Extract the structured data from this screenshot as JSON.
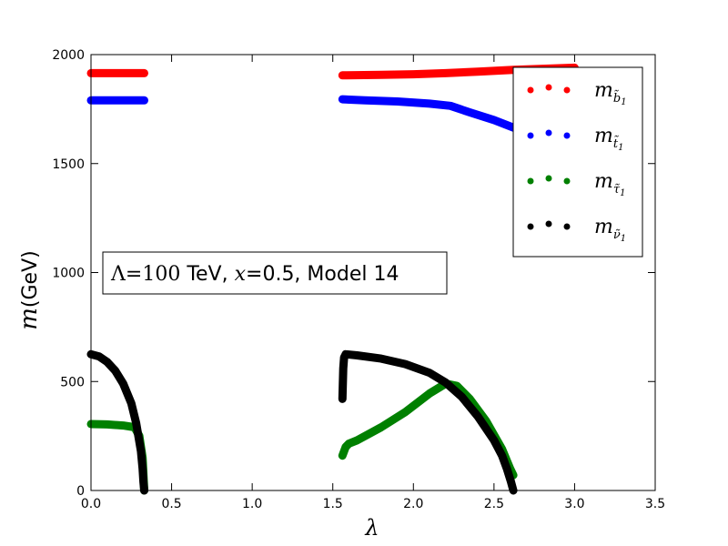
{
  "chart_data": {
    "type": "scatter",
    "xlabel": "λ",
    "ylabel_math": "m",
    "ylabel_unit": "(GeV)",
    "xlim": [
      0.0,
      3.5
    ],
    "ylim": [
      0,
      2000
    ],
    "x_ticks": [
      "0.0",
      "0.5",
      "1.0",
      "1.5",
      "2.0",
      "2.5",
      "3.0",
      "3.5"
    ],
    "y_ticks": [
      "0",
      "500",
      "1000",
      "1500",
      "2000"
    ],
    "grid": false,
    "legend_position": "top-right",
    "annotation": {
      "lambda_sym": "Λ",
      "eq1": "=",
      "lambda_val": "100",
      "rest1": " TeV, ",
      "x_sym": "x",
      "rest2": "=0.5, Model 14"
    },
    "series": [
      {
        "legend_main": "m",
        "legend_sub": "b̃",
        "legend_sub_index": "1",
        "color": "#ff0000",
        "segments": [
          {
            "x": [
              0.0,
              0.1,
              0.2,
              0.33
            ],
            "y": [
              1915,
              1915,
              1915,
              1915
            ]
          },
          {
            "x": [
              1.56,
              1.8,
              2.0,
              2.2,
              2.4,
              2.62,
              2.8,
              3.0
            ],
            "y": [
              1905,
              1907,
              1910,
              1915,
              1922,
              1930,
              1935,
              1940
            ]
          }
        ]
      },
      {
        "legend_main": "m",
        "legend_sub": "t̃",
        "legend_sub_index": "1",
        "color": "#0000ff",
        "segments": [
          {
            "x": [
              0.0,
              0.1,
              0.2,
              0.33
            ],
            "y": [
              1790,
              1790,
              1790,
              1790
            ]
          },
          {
            "x": [
              1.56,
              1.7,
              1.9,
              2.1,
              2.23,
              2.35,
              2.5,
              2.62,
              2.75,
              2.9
            ],
            "y": [
              1795,
              1790,
              1785,
              1775,
              1765,
              1735,
              1700,
              1665,
              1630,
              1600
            ]
          }
        ]
      },
      {
        "legend_main": "m",
        "legend_sub": "τ̃",
        "legend_sub_index": "1",
        "color": "#008000",
        "segments": [
          {
            "x": [
              0.0,
              0.1,
              0.2,
              0.27,
              0.3,
              0.32,
              0.33
            ],
            "y": [
              305,
              303,
              298,
              290,
              250,
              150,
              0
            ]
          },
          {
            "x": [
              1.56,
              1.58,
              1.6,
              1.65,
              1.8,
              1.95,
              2.1,
              2.2,
              2.27,
              2.35,
              2.45,
              2.55,
              2.6,
              2.62
            ],
            "y": [
              160,
              200,
              215,
              230,
              290,
              360,
              445,
              490,
              480,
              420,
              320,
              190,
              100,
              70
            ]
          }
        ]
      },
      {
        "legend_main": "m",
        "legend_sub": "ν̃",
        "legend_sub_index": "1",
        "color": "#000000",
        "segments": [
          {
            "x": [
              0.0,
              0.05,
              0.1,
              0.15,
              0.2,
              0.25,
              0.28,
              0.31,
              0.32,
              0.325,
              0.33
            ],
            "y": [
              625,
              615,
              590,
              550,
              490,
              400,
              310,
              180,
              100,
              40,
              0
            ]
          },
          {
            "x": [
              1.56,
              1.565,
              1.57,
              1.58,
              1.65,
              1.8,
              1.95,
              2.1,
              2.2,
              2.3,
              2.4,
              2.5,
              2.55,
              2.58,
              2.605,
              2.62
            ],
            "y": [
              420,
              560,
              610,
              625,
              620,
              605,
              580,
              540,
              495,
              430,
              340,
              230,
              160,
              100,
              40,
              0
            ]
          }
        ]
      }
    ]
  }
}
